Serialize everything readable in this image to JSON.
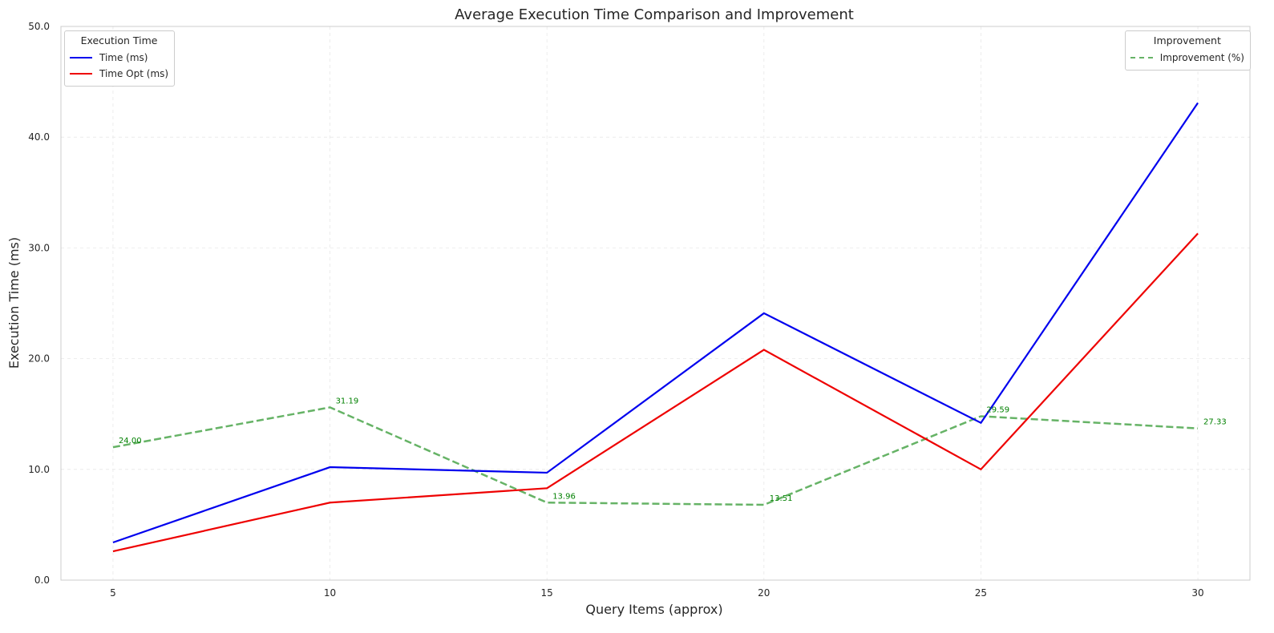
{
  "chart_data": {
    "type": "line",
    "title": "Average Execution Time Comparison and Improvement",
    "xlabel": "Query Items (approx)",
    "ylabel": "Execution Time (ms)",
    "x": [
      5,
      10,
      15,
      20,
      25,
      30
    ],
    "xlim": [
      3.8,
      31.2
    ],
    "ylim": [
      0,
      50
    ],
    "xticks": [
      5,
      10,
      15,
      20,
      25,
      30
    ],
    "yticks": [
      0,
      10,
      20,
      30,
      40,
      50
    ],
    "ytick_labels": [
      "0.0",
      "10.0",
      "20.0",
      "30.0",
      "40.0",
      "50.0"
    ],
    "grid": true,
    "series": [
      {
        "name": "Time (ms)",
        "color": "#0000ee",
        "style": "solid",
        "values": [
          3.4,
          10.2,
          9.7,
          24.1,
          14.2,
          43.1
        ]
      },
      {
        "name": "Time Opt (ms)",
        "color": "#ee0000",
        "style": "solid",
        "values": [
          2.6,
          7.0,
          8.3,
          20.8,
          10.0,
          31.3
        ]
      },
      {
        "name": "Improvement (%)",
        "color": "#66b366",
        "style": "dashed",
        "values": [
          12.0,
          15.6,
          7.0,
          6.8,
          14.8,
          13.7
        ],
        "data_labels": [
          "24.00",
          "31.19",
          "13.96",
          "13.51",
          "29.59",
          "27.33"
        ],
        "label_color": "#008000"
      }
    ],
    "legends": [
      {
        "title": "Execution Time",
        "placement": "top-left",
        "entries": [
          "Time (ms)",
          "Time Opt (ms)"
        ]
      },
      {
        "title": "Improvement",
        "placement": "top-right",
        "entries": [
          "Improvement (%)"
        ]
      }
    ]
  }
}
